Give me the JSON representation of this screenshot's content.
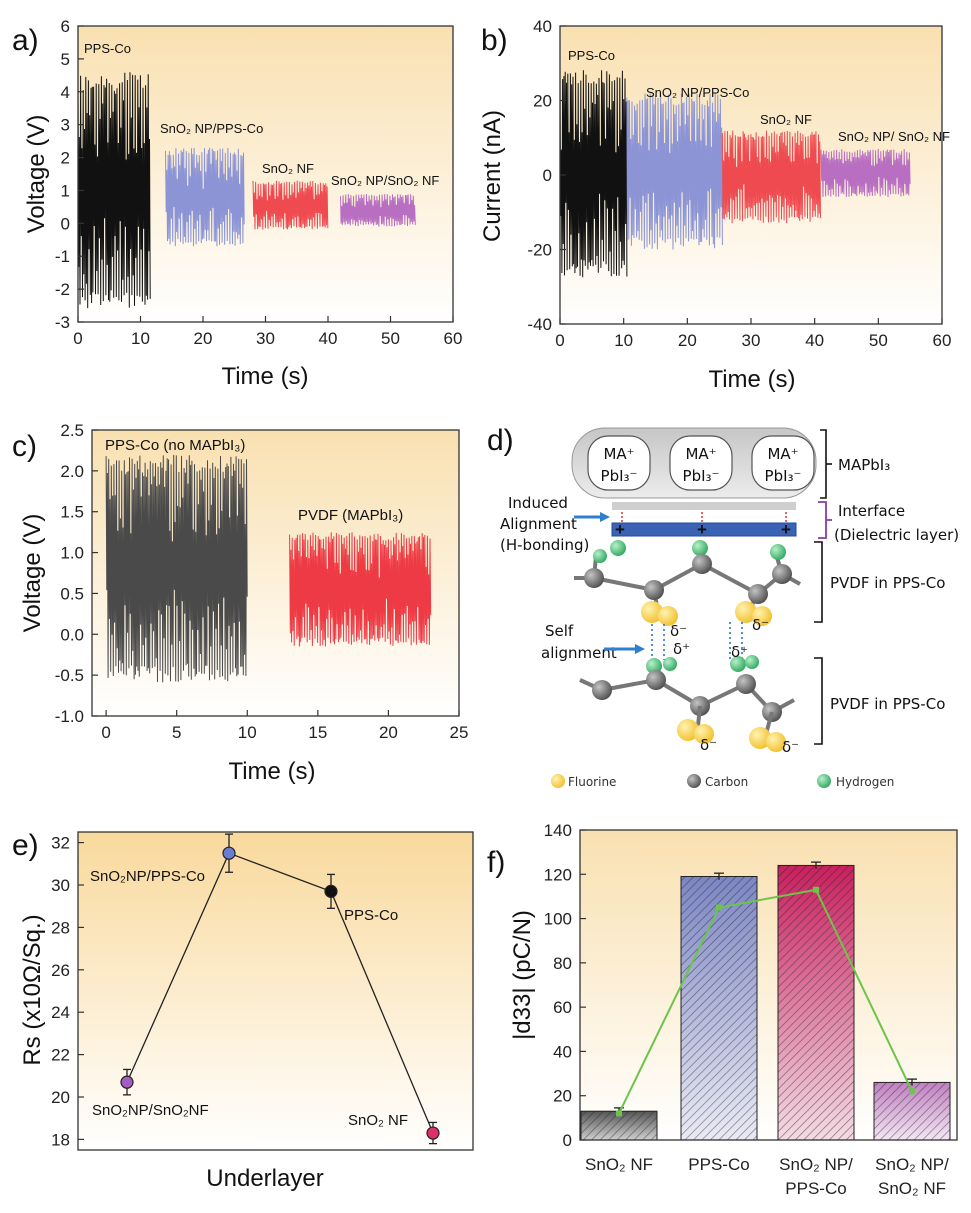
{
  "panels": {
    "a": {
      "label": "a)"
    },
    "b": {
      "label": "b)"
    },
    "c": {
      "label": "c)"
    },
    "d": {
      "label": "d)"
    },
    "e": {
      "label": "e)"
    },
    "f": {
      "label": "f)"
    }
  },
  "chart_data": [
    {
      "panel": "a",
      "type": "line",
      "xlabel": "Time (s)",
      "ylabel": "Voltage (V)",
      "xlim": [
        0,
        60
      ],
      "ylim": [
        -3,
        6
      ],
      "xticks": [
        "0",
        "10",
        "20",
        "30",
        "40",
        "50",
        "60"
      ],
      "yticks": [
        "-3",
        "-2",
        "-1",
        "0",
        "1",
        "2",
        "3",
        "4",
        "5",
        "6"
      ],
      "series": [
        {
          "name": "PPS-Co",
          "color": "#111111",
          "x_range": [
            0,
            11.5
          ],
          "y_min": -2.6,
          "y_max": 4.6
        },
        {
          "name": "SnO2 NP/PPS-Co",
          "color": "#8c94d6",
          "x_range": [
            14,
            26.5
          ],
          "y_min": -0.7,
          "y_max": 2.3
        },
        {
          "name": "SnO2 NF",
          "color": "#ef4a50",
          "x_range": [
            28,
            40
          ],
          "y_min": -0.2,
          "y_max": 1.3
        },
        {
          "name": "SnO2 NP/SnO2 NF",
          "color": "#b86fc2",
          "x_range": [
            42,
            54
          ],
          "y_min": -0.1,
          "y_max": 0.9
        }
      ],
      "annotations": [
        "PPS-Co",
        "SnO₂ NP/PPS-Co",
        "SnO₂ NF",
        "SnO₂ NP/SnO₂ NF"
      ]
    },
    {
      "panel": "b",
      "type": "line",
      "xlabel": "Time (s)",
      "ylabel": "Current (nA)",
      "xlim": [
        0,
        60
      ],
      "ylim": [
        -40,
        40
      ],
      "xticks": [
        "0",
        "10",
        "20",
        "30",
        "40",
        "50",
        "60"
      ],
      "yticks": [
        "-40",
        "-20",
        "0",
        "20",
        "40"
      ],
      "series": [
        {
          "name": "PPS-Co",
          "color": "#111111",
          "x_range": [
            0,
            10.5
          ],
          "y_min": -27.5,
          "y_max": 29
        },
        {
          "name": "SnO2 NP/PPS-Co",
          "color": "#8c94d6",
          "x_range": [
            10.5,
            25.5
          ],
          "y_min": -20,
          "y_max": 22
        },
        {
          "name": "SnO2 NF",
          "color": "#ef4a50",
          "x_range": [
            25.5,
            41
          ],
          "y_min": -13,
          "y_max": 12
        },
        {
          "name": "SnO2 NP/ SnO2 NF",
          "color": "#b86fc2",
          "x_range": [
            41,
            55
          ],
          "y_min": -6,
          "y_max": 7
        }
      ],
      "annotations": [
        "PPS-Co",
        "SnO₂ NP/PPS-Co",
        "SnO₂ NF",
        "SnO₂ NP/ SnO₂ NF"
      ]
    },
    {
      "panel": "c",
      "type": "line",
      "xlabel": "Time (s)",
      "ylabel": "Voltage (V)",
      "xlim": [
        -1,
        25
      ],
      "ylim": [
        -1.0,
        2.5
      ],
      "xticks": [
        "0",
        "5",
        "10",
        "15",
        "20",
        "25"
      ],
      "yticks": [
        "-1.0",
        "-0.5",
        "0.0",
        "0.5",
        "1.0",
        "1.5",
        "2.0",
        "2.5"
      ],
      "series": [
        {
          "name": "PPS-Co (no MAPbI3)",
          "color": "#4a4a4a",
          "x_range": [
            0,
            10
          ],
          "y_min": -0.6,
          "y_max": 2.2
        },
        {
          "name": "PVDF (MAPbI3)",
          "color": "#ee3a44",
          "x_range": [
            13,
            23
          ],
          "y_min": -0.15,
          "y_max": 1.25
        }
      ],
      "annotations": [
        "PPS-Co (no MAPbI₃)",
        "PVDF (MAPbI₃)"
      ]
    },
    {
      "panel": "e",
      "type": "scatter",
      "xlabel": "Underlayer",
      "ylabel": "Rs (x10Ω/Sq.)",
      "ylim": [
        17.5,
        32.5
      ],
      "yticks": [
        "18",
        "20",
        "22",
        "24",
        "26",
        "28",
        "30",
        "32"
      ],
      "categories": [
        "SnO₂NP/SnO₂NF",
        "SnO₂NP/PPS-Co",
        "PPS-Co",
        "SnO₂ NF"
      ],
      "values": [
        20.7,
        31.5,
        29.7,
        18.3
      ],
      "errors": [
        0.6,
        0.9,
        0.8,
        0.5
      ],
      "colors": [
        "#a45ec0",
        "#6a7dd4",
        "#111111",
        "#e0306a"
      ]
    },
    {
      "panel": "f",
      "type": "bar",
      "ylabel": "|d33| (pC/N)",
      "ylim": [
        0,
        140
      ],
      "yticks": [
        "0",
        "20",
        "40",
        "60",
        "80",
        "100",
        "120",
        "140"
      ],
      "categories": [
        "SnO₂ NF",
        "PPS-Co",
        "SnO₂ NP/\nPPS-Co",
        "SnO₂ NP/\nSnO₂ NF"
      ],
      "values": [
        13,
        119,
        124,
        26
      ],
      "errors": [
        1.5,
        1.5,
        1.5,
        1.5
      ],
      "bar_colors": [
        "#7d7d7d",
        "#8690c8",
        "#cc2a6a",
        "#c48cc4"
      ],
      "line_series": {
        "values": [
          12,
          105,
          113,
          22
        ],
        "color": "#6cc44a"
      }
    }
  ],
  "diagram_d": {
    "mapbi_units": [
      {
        "top": "MA⁺",
        "bottom": "PbI₃⁻"
      },
      {
        "top": "MA⁺",
        "bottom": "PbI₃⁻"
      },
      {
        "top": "MA⁺",
        "bottom": "PbI₃⁻"
      }
    ],
    "bracket_labels": {
      "mapbi": "MAPbI₃",
      "interface_1": "Interface",
      "interface_2": "(Dielectric layer)",
      "pvdf_top": "PVDF in PPS-Co",
      "pvdf_bottom": "PVDF in PPS-Co"
    },
    "left_labels": {
      "induced_1": "Induced",
      "induced_2": "Alignment",
      "induced_3": "(H-bonding)",
      "self_1": "Self",
      "self_2": "alignment"
    },
    "charges": {
      "plus": "+",
      "delta_minus": "δ⁻",
      "delta_plus": "δ⁺"
    },
    "legend": [
      {
        "name": "Fluorine",
        "color": "#f5c842"
      },
      {
        "name": "Carbon",
        "color": "#6e6e6e"
      },
      {
        "name": "Hydrogen",
        "color": "#4fc27e"
      }
    ]
  }
}
